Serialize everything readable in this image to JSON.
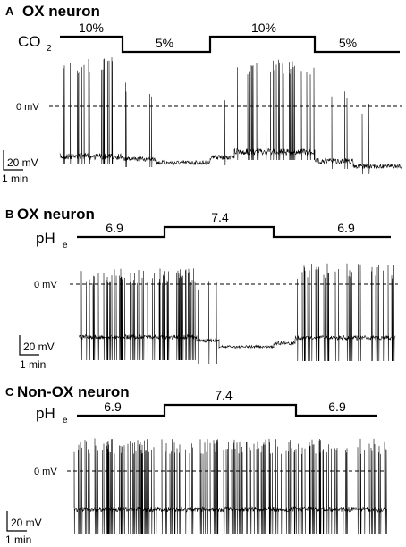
{
  "panels": [
    {
      "letter": "A",
      "title": "OX neuron",
      "stimulus": {
        "name": "CO",
        "subscript": "2"
      },
      "levels": [
        "10%",
        "5%",
        "10%",
        "5%"
      ],
      "zero_label": "0 mV",
      "scale": {
        "voltage": "20 mV",
        "time": "1 min"
      }
    },
    {
      "letter": "B",
      "title": "OX neuron",
      "stimulus": {
        "name": "pH",
        "subscript": "e"
      },
      "levels": [
        "6.9",
        "7.4",
        "6.9"
      ],
      "zero_label": "0 mV",
      "scale": {
        "voltage": "20 mV",
        "time": "1 min"
      }
    },
    {
      "letter": "C",
      "title": "Non-OX neuron",
      "stimulus": {
        "name": "pH",
        "subscript": "e"
      },
      "levels": [
        "6.9",
        "7.4",
        "6.9"
      ],
      "zero_label": "0 mV",
      "scale": {
        "voltage": "20 mV",
        "time": "1 min"
      }
    }
  ]
}
